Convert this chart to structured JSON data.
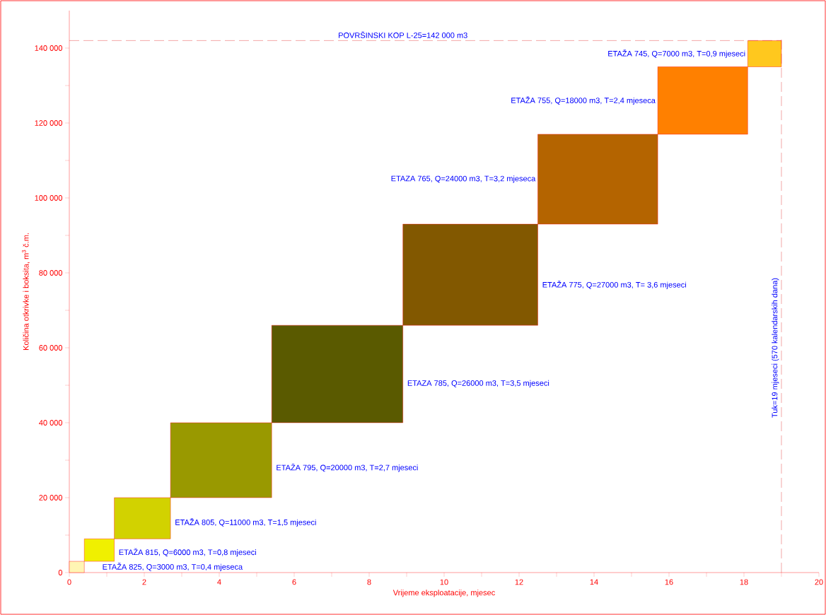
{
  "chart_data": {
    "type": "bar",
    "x": [
      0.2,
      0.8,
      1.95,
      4.05,
      7.15,
      10.7,
      14.1,
      16.9,
      18.55
    ],
    "base": [
      0,
      3000,
      9000,
      20000,
      40000,
      66000,
      93000,
      117000,
      135000
    ],
    "values": [
      3000,
      6000,
      11000,
      20000,
      26000,
      27000,
      24000,
      18000,
      7000
    ],
    "colors": [
      "#fff5b4",
      "#f0f000",
      "#d2d200",
      "#999900",
      "#5a5a00",
      "#825800",
      "#b46400",
      "#ff8000",
      "#ffc81e"
    ],
    "xlim": [
      0,
      20
    ],
    "ylim": [
      0,
      150000
    ],
    "xticks": [
      0,
      {
        "value": 1,
        "label": null
      },
      2,
      {
        "value": 3,
        "label": null
      },
      4,
      {
        "value": 5,
        "label": null
      },
      6,
      {
        "value": 7,
        "label": null
      },
      8,
      {
        "value": 9,
        "label": null
      },
      10,
      {
        "value": 11,
        "label": null
      },
      12,
      {
        "value": 13,
        "label": null
      },
      14,
      {
        "value": 15,
        "label": null
      },
      16,
      {
        "value": 17,
        "label": null
      },
      18,
      {
        "value": 19,
        "label": null
      },
      20
    ],
    "yticks": [
      0,
      {
        "value": 10000,
        "label": null
      },
      {
        "value": 20000,
        "label": "20 000"
      },
      {
        "value": 30000,
        "label": null
      },
      {
        "value": 40000,
        "label": "40 000"
      },
      {
        "value": 50000,
        "label": null
      },
      {
        "value": 60000,
        "label": "60 000"
      },
      {
        "value": 70000,
        "label": null
      },
      {
        "value": 80000,
        "label": "80 000"
      },
      {
        "value": 90000,
        "label": null
      },
      {
        "value": 100000,
        "label": "100 000"
      },
      {
        "value": 110000,
        "label": null
      },
      {
        "value": 120000,
        "label": "120 000"
      },
      {
        "value": 130000,
        "label": null
      },
      {
        "value": 140000,
        "label": "140 000"
      }
    ],
    "xlabel": "Vrijeme eksploatacije, mjesec",
    "ylabel": "Količina otkrivke i boksita, m$^{3}$ č.m.",
    "ref_lines": [
      {
        "axis": "y",
        "value": 142000,
        "label": "POVRŠINSKI KOP L-25=142 000 m3",
        "color": "#e02020",
        "line_style": "dashed"
      },
      {
        "axis": "x",
        "value": 19,
        "label": "Tuk=19 mjeseci (570 kalendarskih dana)",
        "color": "#e02020",
        "line_style": "dashed"
      }
    ],
    "annotations": [
      "ETAŽA 825, Q=3000 m3, T=0,4 mjeseca",
      "ETAŽA 815, Q=6000 m3, T=0,8 mjeseci",
      "ETAŽA 805, Q=11000 m3, T=1,5 mjeseci",
      "ETAŽA 795, Q=20000 m3, T=2,7 mjeseci",
      "ETAZA 785, Q=26000 m3, T=3,5 mjeseci",
      "ETAŽA 775, Q=27000 m3, T= 3,6 mjeseci",
      "ETAZA 765, Q=24000 m3, T=3,2 mjeseca",
      "ETAŽA 755, Q=18000 m3, T=2,4 mjeseca",
      "ETAŽA 745, Q=7000 m3, T=0,9 mjeseci"
    ]
  }
}
